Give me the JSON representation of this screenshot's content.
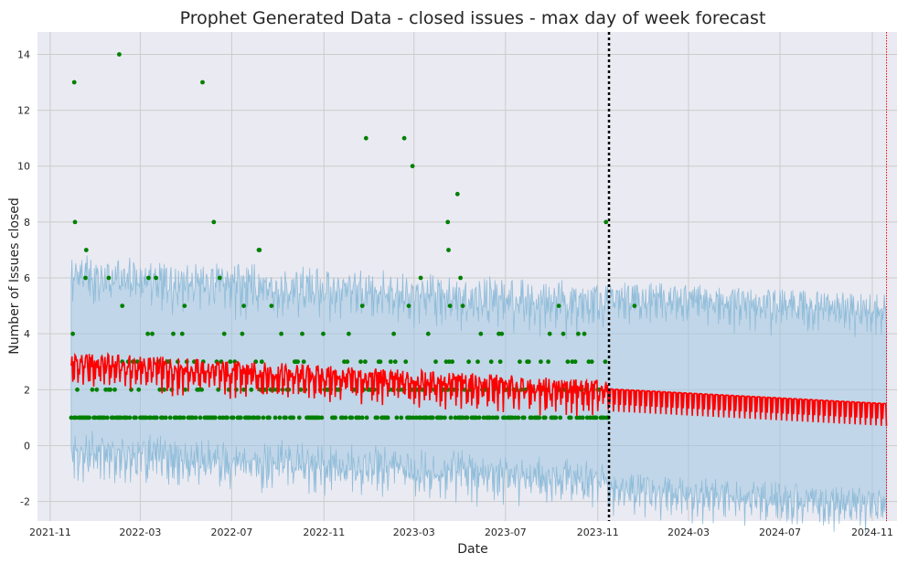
{
  "chart_data": {
    "type": "line",
    "title": "Prophet Generated Data - closed issues - max day of week forecast",
    "xlabel": "Date",
    "ylabel": "Number of Issues closed",
    "xlim": [
      "2021-10-15",
      "2024-12-04"
    ],
    "ylim": [
      -2.7,
      14.8
    ],
    "x_ticks": [
      "2021-11",
      "2022-03",
      "2022-07",
      "2022-11",
      "2023-03",
      "2023-07",
      "2023-11",
      "2024-03",
      "2024-07",
      "2024-11"
    ],
    "y_ticks": [
      -2,
      0,
      2,
      4,
      6,
      8,
      10,
      12,
      14
    ],
    "grid": true,
    "forecast_start": "2023-11-16",
    "series_end": "2024-11-20",
    "colors": {
      "background": "#eaeaf2",
      "grid": "#cccccc",
      "band": "#9ec4e0",
      "band_edge": "#8fbcd9",
      "forecast": "#ff0000",
      "actual": "#008000",
      "forecast_start_line": "#000000",
      "end_line": "#ff0000",
      "text": "#262626"
    },
    "actual_outliers": [
      {
        "x": "2021-12-03",
        "y": 13
      },
      {
        "x": "2021-12-04",
        "y": 8
      },
      {
        "x": "2021-12-18",
        "y": 6
      },
      {
        "x": "2021-12-19",
        "y": 7
      },
      {
        "x": "2022-02-01",
        "y": 14
      },
      {
        "x": "2022-02-05",
        "y": 5
      },
      {
        "x": "2022-05-23",
        "y": 13
      },
      {
        "x": "2022-06-07",
        "y": 8
      },
      {
        "x": "2022-03-12",
        "y": 6
      },
      {
        "x": "2022-03-22",
        "y": 6
      },
      {
        "x": "2022-06-15",
        "y": 6
      },
      {
        "x": "2022-08-06",
        "y": 7
      },
      {
        "x": "2022-08-07",
        "y": 7
      },
      {
        "x": "2022-01-18",
        "y": 6
      },
      {
        "x": "2022-12-27",
        "y": 11
      },
      {
        "x": "2023-02-16",
        "y": 11
      },
      {
        "x": "2023-02-27",
        "y": 10
      },
      {
        "x": "2023-04-15",
        "y": 8
      },
      {
        "x": "2023-04-16",
        "y": 7
      },
      {
        "x": "2023-04-28",
        "y": 9
      },
      {
        "x": "2023-05-02",
        "y": 6
      },
      {
        "x": "2023-03-10",
        "y": 6
      },
      {
        "x": "2023-11-12",
        "y": 8
      },
      {
        "x": "2023-09-10",
        "y": 5
      },
      {
        "x": "2023-12-20",
        "y": 5
      },
      {
        "x": "2022-12-22",
        "y": 5
      },
      {
        "x": "2023-02-22",
        "y": 5
      },
      {
        "x": "2023-04-18",
        "y": 5
      },
      {
        "x": "2023-05-05",
        "y": 5
      },
      {
        "x": "2022-04-29",
        "y": 5
      },
      {
        "x": "2022-07-17",
        "y": 5
      },
      {
        "x": "2022-08-23",
        "y": 5
      }
    ]
  }
}
